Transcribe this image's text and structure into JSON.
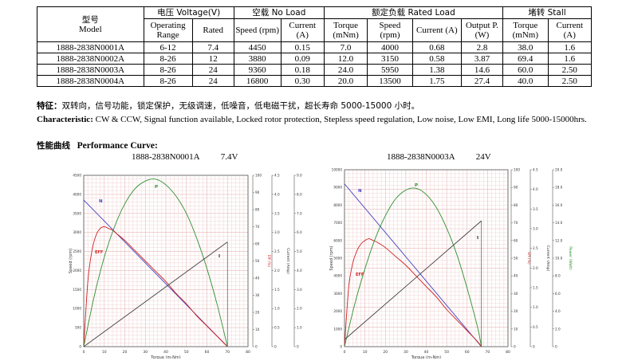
{
  "table": {
    "header_model_cn": "型号",
    "header_model_en": "Model",
    "header_voltage": "电压 Voltage(V)",
    "header_noload": "空载 No Load",
    "header_rated": "额定负载 Rated Load",
    "header_stall": "堵转 Stall",
    "sub_operating": "Operating Range",
    "sub_rated": "Rated",
    "sub_speed": "Speed (rpm)",
    "sub_current": "Current (A)",
    "sub_torque": "Torque (mNm)",
    "sub_output": "Output P. (W)",
    "rows": [
      {
        "model": "1888-2838N0001A",
        "range": "6-12",
        "rated": "7.4",
        "nl_speed": "4450",
        "nl_current": "0.15",
        "torque": "7.0",
        "speed": "4000",
        "current": "0.68",
        "output": "2.8",
        "stall_torque": "38.0",
        "stall_current": "1.6"
      },
      {
        "model": "1888-2838N0002A",
        "range": "8-26",
        "rated": "12",
        "nl_speed": "3880",
        "nl_current": "0.09",
        "torque": "12.0",
        "speed": "3150",
        "current": "0.58",
        "output": "3.87",
        "stall_torque": "69.4",
        "stall_current": "1.6"
      },
      {
        "model": "1888-2838N0003A",
        "range": "8-26",
        "rated": "24",
        "nl_speed": "9360",
        "nl_current": "0.18",
        "torque": "24.0",
        "speed": "5950",
        "current": "1.38",
        "output": "14.6",
        "stall_torque": "60.0",
        "stall_current": "2.50"
      },
      {
        "model": "1888-2838N0004A",
        "range": "8-26",
        "rated": "24",
        "nl_speed": "16800",
        "nl_current": "0.30",
        "torque": "20.0",
        "speed": "13500",
        "current": "1.75",
        "output": "27.4",
        "stall_torque": "40.0",
        "stall_current": "2.50"
      }
    ]
  },
  "features": {
    "label_cn": "特征：",
    "text_cn": "双转向，信号功能，锁定保护，无级调速，低噪音，低电磁干扰，超长寿命 5000-15000 小时。"
  },
  "characteristic": {
    "label": "Characteristic:",
    "text": " CW & CCW, Signal function available, Locked rotor protection, Stepless speed regulation, Low noise, Low EMI, Long life 5000-15000hrs."
  },
  "performance": {
    "label_cn": "性能曲线",
    "label_en": "Performance Curve:"
  },
  "chart_data": [
    {
      "type": "line",
      "title_model": "1888-2838N0001A",
      "title_voltage": "7.4V",
      "xlabel": "Torque (m-Nm)",
      "ylabel_speed": "Speed (rpm)",
      "ylabel_eff": "Eff (%)",
      "ylabel_current": "Current (Amp)",
      "ylabel_power": "Power (Watt)",
      "xlim": [
        0,
        80
      ],
      "ylim_speed": [
        0,
        4500
      ],
      "ylim_eff": [
        0,
        100
      ],
      "ylim_current": [
        0,
        4.5
      ],
      "ylim_power": [
        0,
        9.0
      ],
      "x_ticks": [
        "0",
        "10",
        "20",
        "30",
        "40",
        "50",
        "60",
        "70",
        "80"
      ],
      "speed_ticks": [
        "0",
        "500",
        "1000",
        "1500",
        "2000",
        "2500",
        "3000",
        "3500",
        "4000",
        "4500"
      ],
      "eff_ticks": [
        "0",
        "10",
        "20",
        "30",
        "40",
        "50",
        "60",
        "70",
        "80",
        "90",
        "100"
      ],
      "current_ticks": [
        "0",
        "0.5",
        "1.0",
        "1.5",
        "2.0",
        "2.5",
        "3.0",
        "3.5",
        "4.0",
        "4.5"
      ],
      "power_ticks": [
        "0",
        "1.0",
        "2.0",
        "3.0",
        "4.0",
        "5.0",
        "6.0",
        "7.0",
        "8.0",
        "9.0"
      ],
      "grid": true,
      "series_labels": {
        "N": "N",
        "EFF": "EFF",
        "P": "P",
        "I": "I"
      },
      "colors": {
        "N": "#4040c0",
        "EFF": "#d02020",
        "P": "#309030",
        "I": "#404040",
        "grid": "#e8b8b8"
      },
      "series": [
        {
          "name": "N",
          "axis": "speed",
          "x": [
            0,
            70
          ],
          "y": [
            3850,
            0
          ]
        },
        {
          "name": "EFF",
          "axis": "eff",
          "x": [
            0,
            2,
            4,
            6,
            8,
            10,
            12,
            14,
            16,
            20,
            25,
            30,
            35,
            40,
            45,
            50,
            55,
            60,
            65,
            70
          ],
          "y": [
            0,
            38,
            56,
            65,
            69,
            70,
            69,
            68,
            66,
            62,
            56,
            50,
            44,
            38,
            31,
            25,
            18,
            12,
            6,
            0
          ]
        },
        {
          "name": "P",
          "axis": "power",
          "x": [
            0,
            5,
            10,
            15,
            20,
            25,
            30,
            35,
            40,
            45,
            50,
            55,
            60,
            65,
            70
          ],
          "y": [
            0,
            2.6,
            4.7,
            6.3,
            7.5,
            8.3,
            8.7,
            8.8,
            8.5,
            7.9,
            7.0,
            5.7,
            4.1,
            2.2,
            0
          ]
        },
        {
          "name": "I",
          "axis": "current",
          "x": [
            0,
            70
          ],
          "y": [
            0,
            2.75
          ]
        }
      ]
    },
    {
      "type": "line",
      "title_model": "1888-2838N0003A",
      "title_voltage": "24V",
      "xlabel": "Torque (m-Nm)",
      "ylabel_speed": "Speed (rpm)",
      "ylabel_eff": "Eff (%)",
      "ylabel_current": "Current (Amp)",
      "ylabel_power": "Power (Watt)",
      "xlim": [
        0,
        80
      ],
      "ylim_speed": [
        0,
        10000
      ],
      "ylim_eff": [
        0,
        100
      ],
      "ylim_current": [
        0,
        4.5
      ],
      "ylim_power": [
        0,
        20.0
      ],
      "x_ticks": [
        "0",
        "10",
        "20",
        "30",
        "40",
        "50",
        "60",
        "70",
        "80"
      ],
      "speed_ticks": [
        "0",
        "1000",
        "2000",
        "3000",
        "4000",
        "5000",
        "6000",
        "7000",
        "8000",
        "9000",
        "10000"
      ],
      "eff_ticks": [
        "0",
        "10",
        "20",
        "30",
        "40",
        "50",
        "60",
        "70",
        "80",
        "90",
        "100"
      ],
      "current_ticks": [
        "0",
        "0.5",
        "1.0",
        "1.5",
        "2.0",
        "2.5",
        "3.0",
        "3.5",
        "4.0",
        "4.5"
      ],
      "power_ticks": [
        "0",
        "2.0",
        "4.0",
        "6.0",
        "8.0",
        "10.0",
        "12.0",
        "14.0",
        "16.0",
        "18.0",
        "20.0"
      ],
      "grid": true,
      "series_labels": {
        "N": "N",
        "EFF": "EFF",
        "P": "P",
        "I": "I"
      },
      "colors": {
        "N": "#4040c0",
        "EFF": "#d02020",
        "P": "#309030",
        "I": "#404040",
        "grid": "#e8b8b8"
      },
      "series": [
        {
          "name": "N",
          "axis": "speed",
          "x": [
            0,
            67
          ],
          "y": [
            9200,
            0
          ]
        },
        {
          "name": "EFF",
          "axis": "eff",
          "x": [
            0,
            2,
            4,
            6,
            8,
            10,
            12,
            14,
            16,
            20,
            25,
            30,
            35,
            40,
            45,
            50,
            55,
            60,
            65,
            67
          ],
          "y": [
            0,
            33,
            47,
            54,
            58,
            60,
            61,
            60,
            59,
            56,
            51,
            46,
            40,
            34,
            28,
            21,
            15,
            9,
            3,
            0
          ]
        },
        {
          "name": "P",
          "axis": "power",
          "x": [
            0,
            5,
            10,
            15,
            20,
            25,
            30,
            35,
            40,
            45,
            50,
            55,
            60,
            65,
            67
          ],
          "y": [
            0,
            4.8,
            8.8,
            12.2,
            14.8,
            16.7,
            17.7,
            17.9,
            17.2,
            15.7,
            13.4,
            10.4,
            6.6,
            2.3,
            0
          ]
        },
        {
          "name": "I",
          "axis": "current",
          "x": [
            0,
            67
          ],
          "y": [
            0.18,
            3.2
          ]
        }
      ]
    }
  ]
}
